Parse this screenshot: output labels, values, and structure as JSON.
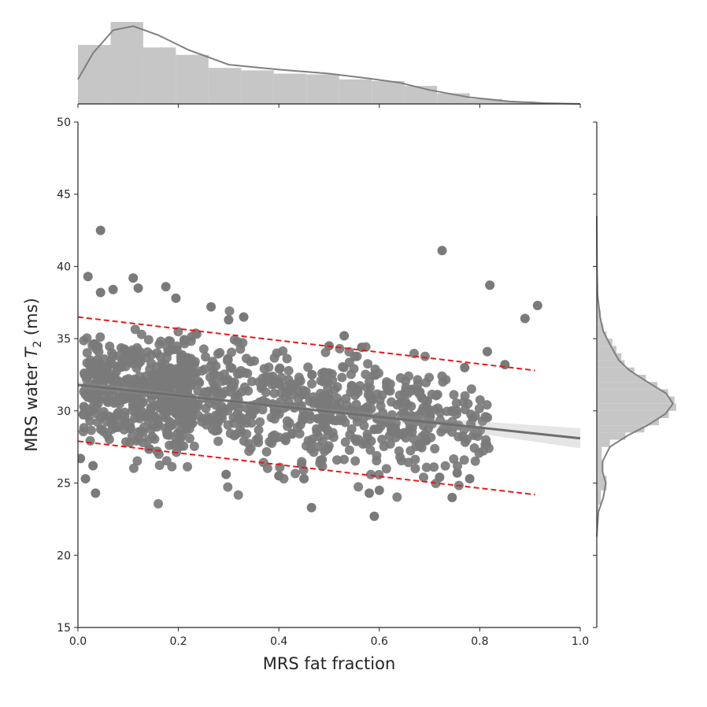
{
  "chart_data": {
    "type": "scatter",
    "xlabel": "MRS fat fraction",
    "ylabel_prefix": "MRS water ",
    "ylabel_symbol": "T",
    "ylabel_subscript": "2",
    "ylabel_suffix": " (ms)",
    "xlim": [
      0.0,
      1.0
    ],
    "ylim": [
      15,
      50
    ],
    "xticks": [
      "0.0",
      "0.2",
      "0.4",
      "0.6",
      "0.8",
      "1.0"
    ],
    "yticks": [
      "15",
      "20",
      "25",
      "30",
      "35",
      "40",
      "45",
      "50"
    ],
    "regression": {
      "x": [
        0.0,
        1.0
      ],
      "y": [
        31.8,
        28.1
      ]
    },
    "prediction_bounds": [
      {
        "x": [
          0.0,
          0.91
        ],
        "y": [
          36.5,
          32.8
        ]
      },
      {
        "x": [
          0.0,
          0.91
        ],
        "y": [
          27.9,
          24.2
        ]
      }
    ],
    "outlier_points": [
      {
        "x": 0.045,
        "y": 42.5
      },
      {
        "x": 0.02,
        "y": 39.3
      },
      {
        "x": 0.11,
        "y": 39.2
      },
      {
        "x": 0.07,
        "y": 38.4
      },
      {
        "x": 0.12,
        "y": 38.5
      },
      {
        "x": 0.175,
        "y": 38.6
      },
      {
        "x": 0.195,
        "y": 37.8
      },
      {
        "x": 0.265,
        "y": 37.2
      },
      {
        "x": 0.045,
        "y": 38.2
      },
      {
        "x": 0.725,
        "y": 41.1
      },
      {
        "x": 0.82,
        "y": 38.7
      },
      {
        "x": 0.915,
        "y": 37.3
      },
      {
        "x": 0.89,
        "y": 36.4
      },
      {
        "x": 0.815,
        "y": 34.1
      },
      {
        "x": 0.85,
        "y": 33.2
      },
      {
        "x": 0.77,
        "y": 33.0
      },
      {
        "x": 0.3,
        "y": 36.3
      },
      {
        "x": 0.33,
        "y": 36.5
      },
      {
        "x": 0.5,
        "y": 34.5
      },
      {
        "x": 0.53,
        "y": 35.2
      },
      {
        "x": 0.565,
        "y": 34.4
      },
      {
        "x": 0.59,
        "y": 22.7
      },
      {
        "x": 0.465,
        "y": 23.3
      },
      {
        "x": 0.035,
        "y": 24.3
      },
      {
        "x": 0.745,
        "y": 24.0
      },
      {
        "x": 0.78,
        "y": 25.3
      },
      {
        "x": 0.755,
        "y": 25.7
      },
      {
        "x": 0.005,
        "y": 26.7
      },
      {
        "x": 0.015,
        "y": 25.3
      },
      {
        "x": 0.03,
        "y": 26.2
      },
      {
        "x": 0.6,
        "y": 24.5
      },
      {
        "x": 0.58,
        "y": 24.3
      },
      {
        "x": 0.4,
        "y": 25.5
      },
      {
        "x": 0.45,
        "y": 25.3
      },
      {
        "x": 0.295,
        "y": 25.6
      },
      {
        "x": 0.72,
        "y": 25.4
      }
    ],
    "marginal_x_histogram": {
      "bin_edges": [
        0.0,
        0.065,
        0.13,
        0.195,
        0.26,
        0.325,
        0.39,
        0.455,
        0.52,
        0.585,
        0.65,
        0.715,
        0.78,
        0.845,
        0.91,
        0.975,
        1.0
      ],
      "heights": [
        0.72,
        1.0,
        0.69,
        0.6,
        0.44,
        0.41,
        0.37,
        0.36,
        0.3,
        0.28,
        0.22,
        0.13,
        0.06,
        0.03,
        0.01,
        0.005
      ],
      "kde": [
        [
          0.0,
          0.3
        ],
        [
          0.03,
          0.62
        ],
        [
          0.07,
          0.9
        ],
        [
          0.11,
          0.95
        ],
        [
          0.16,
          0.84
        ],
        [
          0.22,
          0.66
        ],
        [
          0.3,
          0.48
        ],
        [
          0.4,
          0.42
        ],
        [
          0.5,
          0.37
        ],
        [
          0.58,
          0.31
        ],
        [
          0.64,
          0.26
        ],
        [
          0.7,
          0.17
        ],
        [
          0.78,
          0.08
        ],
        [
          0.86,
          0.03
        ],
        [
          0.93,
          0.01
        ],
        [
          1.0,
          0.0
        ]
      ]
    },
    "marginal_y_histogram": {
      "bin_edges": [
        21.5,
        22.5,
        23.5,
        24.5,
        25.5,
        26.5,
        27.5,
        28.0,
        28.5,
        29.0,
        29.5,
        30.0,
        30.5,
        31.0,
        31.5,
        32.0,
        32.5,
        33.0,
        33.5,
        34.0,
        34.5,
        35.0,
        35.5,
        36.0,
        37.0,
        38.0,
        39.0
      ],
      "heights": [
        0.0,
        0.02,
        0.05,
        0.12,
        0.08,
        0.06,
        0.16,
        0.35,
        0.58,
        0.76,
        0.88,
        0.97,
        0.95,
        0.87,
        0.74,
        0.6,
        0.46,
        0.34,
        0.3,
        0.24,
        0.19,
        0.12,
        0.08,
        0.05,
        0.02,
        0.01
      ],
      "kde": [
        [
          21.3,
          0.0
        ],
        [
          23.0,
          0.02
        ],
        [
          24.0,
          0.08
        ],
        [
          25.0,
          0.11
        ],
        [
          25.8,
          0.07
        ],
        [
          26.5,
          0.07
        ],
        [
          27.5,
          0.16
        ],
        [
          28.3,
          0.38
        ],
        [
          29.0,
          0.62
        ],
        [
          29.8,
          0.84
        ],
        [
          30.5,
          0.93
        ],
        [
          31.2,
          0.85
        ],
        [
          32.0,
          0.62
        ],
        [
          32.8,
          0.4
        ],
        [
          33.5,
          0.27
        ],
        [
          34.5,
          0.17
        ],
        [
          35.5,
          0.08
        ],
        [
          36.5,
          0.04
        ],
        [
          38.0,
          0.01
        ],
        [
          40.0,
          0.003
        ],
        [
          43.5,
          0.0
        ]
      ]
    }
  }
}
